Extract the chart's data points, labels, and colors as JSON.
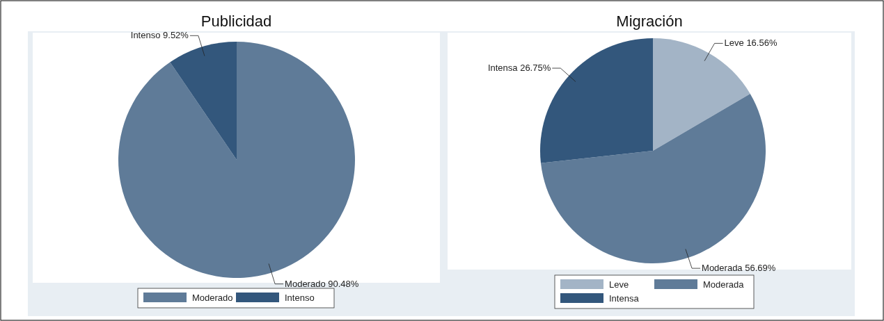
{
  "chart_data": [
    {
      "type": "pie",
      "title": "Publicidad",
      "categories": [
        "Moderado",
        "Intenso"
      ],
      "values": [
        90.48,
        9.52
      ],
      "colors": [
        "#5f7b98",
        "#33577c"
      ],
      "value_labels": [
        "Moderado 90.48%",
        "Intenso 9.52%"
      ],
      "legend": "bottom"
    },
    {
      "type": "pie",
      "title": "Migración",
      "categories": [
        "Leve",
        "Moderada",
        "Intensa"
      ],
      "values": [
        16.56,
        56.69,
        26.75
      ],
      "colors": [
        "#a3b4c6",
        "#5f7b98",
        "#33577c"
      ],
      "value_labels": [
        "Leve 16.56%",
        "Moderada 56.69%",
        "Intensa 26.75%"
      ],
      "legend": "bottom"
    }
  ]
}
